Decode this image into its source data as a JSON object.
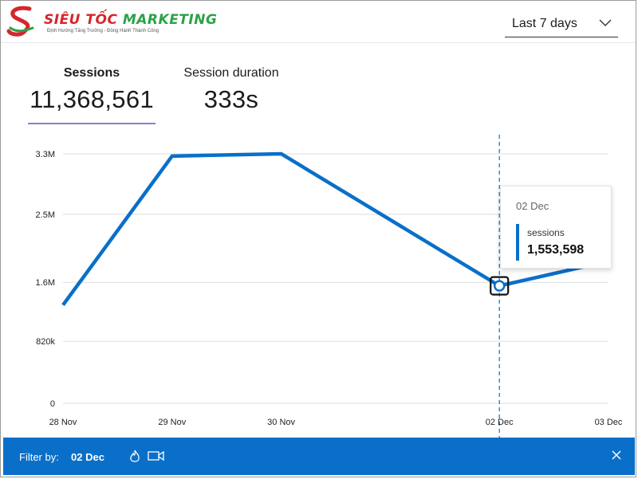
{
  "brand": {
    "name_part1": "SIÊU TỐC",
    "name_part2": "MARKETING",
    "tagline": "Định Hướng Tăng Trưởng - Đồng Hành Thành Công"
  },
  "date_range": {
    "selected": "Last 7 days"
  },
  "metrics": [
    {
      "name": "Sessions",
      "value": "11,368,561",
      "active": true
    },
    {
      "name": "Session duration",
      "value": "333s",
      "active": false
    }
  ],
  "tooltip": {
    "date": "02 Dec",
    "series": "sessions",
    "value": "1,553,598"
  },
  "filter": {
    "label": "Filter by:",
    "value": "02 Dec",
    "icons": [
      "flame-icon",
      "video-camera-icon"
    ],
    "close_icon": "close-icon"
  },
  "colors": {
    "line": "#0a6fc9",
    "grid": "#dddddd",
    "filter_bar": "#0a6fc9",
    "tab_underline": "#8b7fd4"
  },
  "chart_data": {
    "type": "line",
    "x": [
      "28 Nov",
      "29 Nov",
      "30 Nov",
      "02 Dec",
      "03 Dec"
    ],
    "x_days": [
      0,
      1,
      2,
      4,
      5
    ],
    "series": [
      {
        "name": "sessions",
        "values": [
          1300000,
          3270000,
          3300000,
          1553598,
          1880000
        ]
      }
    ],
    "y_ticks": [
      0,
      820000,
      1600000,
      2500000,
      3300000
    ],
    "y_tick_labels": [
      "0",
      "820k",
      "1.6M",
      "2.5M",
      "3.3M"
    ],
    "ylim": [
      0,
      3300000
    ],
    "highlight": "02 Dec",
    "grid": true,
    "title": "",
    "xlabel": "",
    "ylabel": ""
  }
}
